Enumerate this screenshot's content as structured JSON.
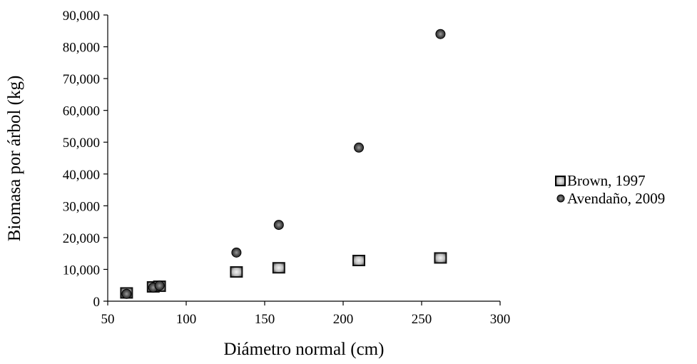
{
  "chart_data": {
    "type": "scatter",
    "xlabel": "Diámetro normal (cm)",
    "ylabel": "Biomasa por árbol (kg)",
    "xlim": [
      50,
      300
    ],
    "ylim": [
      0,
      90000
    ],
    "xticks": [
      50,
      100,
      150,
      200,
      250,
      300
    ],
    "yticks": [
      0,
      10000,
      20000,
      30000,
      40000,
      50000,
      60000,
      70000,
      80000,
      90000
    ],
    "xtick_labels": [
      "50",
      "100",
      "150",
      "200",
      "250",
      "300"
    ],
    "ytick_labels": [
      "0",
      "10,000",
      "20,000",
      "30,000",
      "40,000",
      "50,000",
      "60,000",
      "70,000",
      "80,000",
      "90,000"
    ],
    "grid": false,
    "legend_position": "right",
    "series": [
      {
        "name": "Brown, 1997",
        "marker": "square",
        "x": [
          62,
          79,
          83,
          132,
          159,
          210,
          262
        ],
        "y": [
          2600,
          4500,
          4700,
          9200,
          10500,
          12800,
          13600
        ]
      },
      {
        "name": "Avendaño, 2009",
        "marker": "circle",
        "x": [
          62,
          79,
          83,
          132,
          159,
          210,
          262
        ],
        "y": [
          2300,
          4300,
          4900,
          15300,
          24000,
          48300,
          84000
        ]
      }
    ]
  }
}
